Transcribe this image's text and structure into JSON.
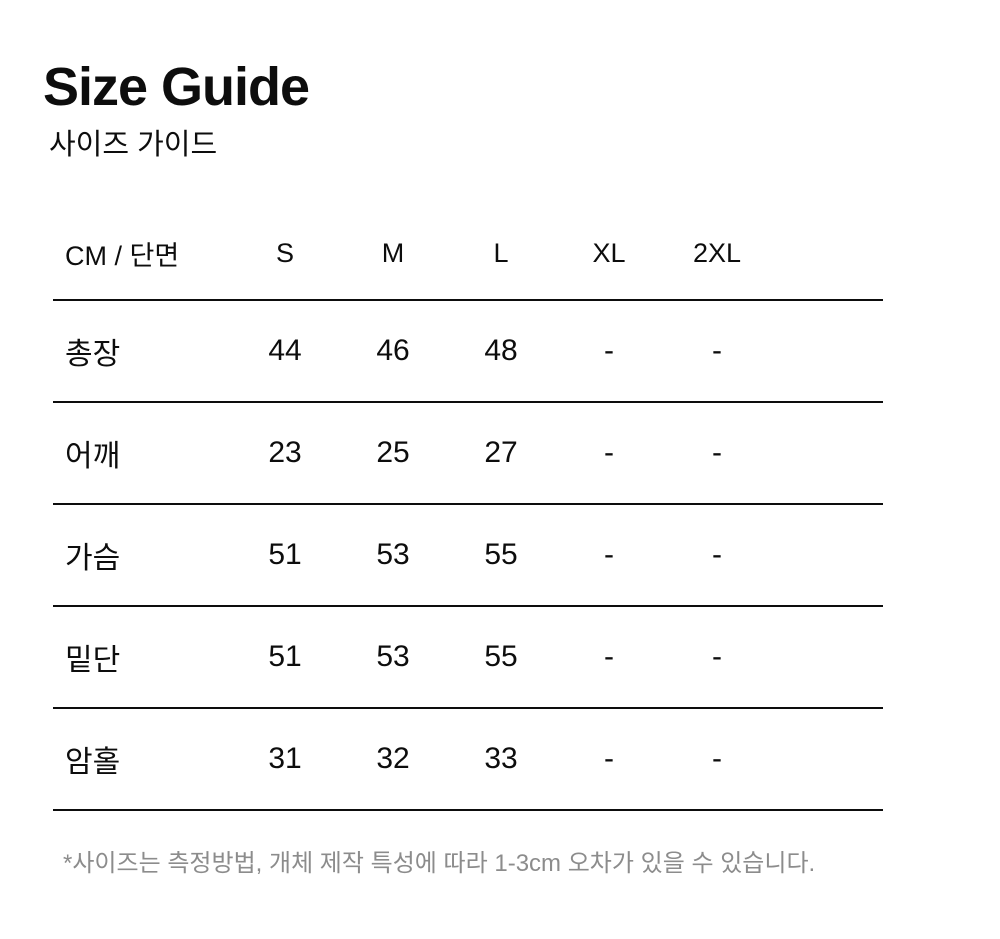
{
  "page": {
    "title": "Size Guide",
    "subtitle": "사이즈 가이드",
    "footnote": "*사이즈는 측정방법, 개체 제작 특성에 따라 1-3cm 오차가 있을 수 있습니다."
  },
  "size_table": {
    "unit_label": "CM / 단면",
    "columns": [
      "CM / 단면",
      "S",
      "M",
      "L",
      "XL",
      "2XL"
    ],
    "rows": [
      {
        "label": "총장",
        "values": [
          "44",
          "46",
          "48",
          "-",
          "-"
        ]
      },
      {
        "label": "어깨",
        "values": [
          "23",
          "25",
          "27",
          "-",
          "-"
        ]
      },
      {
        "label": "가슴",
        "values": [
          "51",
          "53",
          "55",
          "-",
          "-"
        ]
      },
      {
        "label": "밑단",
        "values": [
          "51",
          "53",
          "55",
          "-",
          "-"
        ]
      },
      {
        "label": "암홀",
        "values": [
          "31",
          "32",
          "33",
          "-",
          "-"
        ]
      }
    ]
  },
  "colors": {
    "text": "#0d0d0d",
    "line": "#0d0d0d",
    "muted_text": "#8c8c8c",
    "background": "#ffffff"
  }
}
